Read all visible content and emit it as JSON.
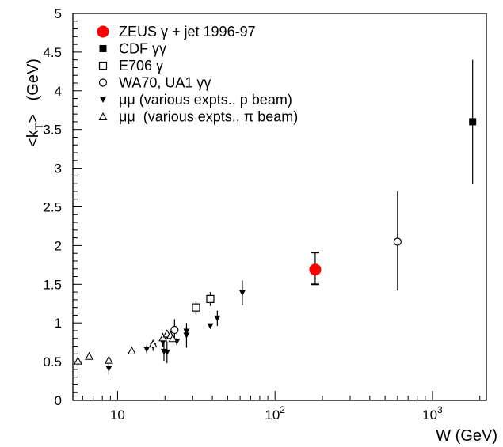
{
  "chart_data": {
    "type": "scatter",
    "title": "",
    "xlabel": "W   (GeV)",
    "ylabel": "<kT>   (GeV)",
    "x_scale": "log",
    "xlim": [
      5.2,
      2200
    ],
    "ylim": [
      0,
      5
    ],
    "x_major_ticks": [
      {
        "value": 10,
        "label": "10"
      },
      {
        "value": 100,
        "label": "10",
        "sup": "2"
      },
      {
        "value": 1000,
        "label": "10",
        "sup": "3"
      }
    ],
    "y_ticks": [
      {
        "value": 0,
        "label": "0"
      },
      {
        "value": 0.5,
        "label": "0.5"
      },
      {
        "value": 1,
        "label": "1"
      },
      {
        "value": 1.5,
        "label": "1.5"
      },
      {
        "value": 2,
        "label": "2"
      },
      {
        "value": 2.5,
        "label": "2.5"
      },
      {
        "value": 3,
        "label": "3"
      },
      {
        "value": 3.5,
        "label": "3.5"
      },
      {
        "value": 4,
        "label": "4"
      },
      {
        "value": 4.5,
        "label": "4.5"
      },
      {
        "value": 5,
        "label": "5"
      }
    ],
    "grid": false,
    "legend_position": "top-left",
    "series": [
      {
        "name": "ZEUS γ + jet 1996-97",
        "marker": "filled-circle-large",
        "color": "#ff0000",
        "points": [
          {
            "x": 180,
            "y": 1.69,
            "yerr_lo": 0.19,
            "yerr_hi": 0.22
          }
        ]
      },
      {
        "name": "CDF γγ",
        "marker": "filled-square",
        "color": "#000000",
        "points": [
          {
            "x": 1800,
            "y": 3.6,
            "yerr_lo": 0.8,
            "yerr_hi": 0.8
          }
        ]
      },
      {
        "name": "E706 γ",
        "marker": "open-square",
        "color": "#000000",
        "points": [
          {
            "x": 31.5,
            "y": 1.2,
            "yerr_lo": 0.09,
            "yerr_hi": 0.09
          },
          {
            "x": 38.8,
            "y": 1.31,
            "yerr_lo": 0.09,
            "yerr_hi": 0.09
          }
        ]
      },
      {
        "name": "WA70, UA1 γγ",
        "marker": "open-circle",
        "color": "#000000",
        "points": [
          {
            "x": 23,
            "y": 0.91,
            "yerr_lo": 0.14,
            "yerr_hi": 0.14
          },
          {
            "x": 600,
            "y": 2.05,
            "yerr_lo": 0.63,
            "yerr_hi": 0.65
          }
        ]
      },
      {
        "name": "μμ (various expts., p beam)",
        "marker": "filled-triangle-down",
        "color": "#000000",
        "points": [
          {
            "x": 8.8,
            "y": 0.41,
            "yerr_lo": 0.08,
            "yerr_hi": 0.08
          },
          {
            "x": 15.3,
            "y": 0.66,
            "yerr_lo": 0.05,
            "yerr_hi": 0.05
          },
          {
            "x": 16.8,
            "y": 0.7,
            "yerr_lo": 0.06,
            "yerr_hi": 0.06
          },
          {
            "x": 19.4,
            "y": 0.75,
            "yerr_lo": 0.06,
            "yerr_hi": 0.06
          },
          {
            "x": 19.7,
            "y": 0.63,
            "yerr_lo": 0.12,
            "yerr_hi": 0.12
          },
          {
            "x": 20.6,
            "y": 0.62,
            "yerr_lo": 0.14,
            "yerr_hi": 0.14
          },
          {
            "x": 23.8,
            "y": 0.76,
            "yerr_lo": 0.05,
            "yerr_hi": 0.05
          },
          {
            "x": 27.4,
            "y": 0.84,
            "yerr_lo": 0.16,
            "yerr_hi": 0.16
          },
          {
            "x": 27.4,
            "y": 0.89,
            "yerr_lo": 0.06,
            "yerr_hi": 0.06
          },
          {
            "x": 38.8,
            "y": 0.96,
            "yerr_lo": 0.03,
            "yerr_hi": 0.03
          },
          {
            "x": 43,
            "y": 1.06,
            "yerr_lo": 0.1,
            "yerr_hi": 0.1
          },
          {
            "x": 62,
            "y": 1.39,
            "yerr_lo": 0.16,
            "yerr_hi": 0.16
          }
        ]
      },
      {
        "name": "μμ  (various expts., π beam)",
        "marker": "open-triangle-up",
        "color": "#000000",
        "points": [
          {
            "x": 5.6,
            "y": 0.51,
            "yerr_lo": 0.06,
            "yerr_hi": 0.06
          },
          {
            "x": 6.6,
            "y": 0.57,
            "yerr_lo": 0.04,
            "yerr_hi": 0.04
          },
          {
            "x": 8.8,
            "y": 0.52,
            "yerr_lo": 0.03,
            "yerr_hi": 0.03
          },
          {
            "x": 12.3,
            "y": 0.64,
            "yerr_lo": 0.03,
            "yerr_hi": 0.03
          },
          {
            "x": 16.8,
            "y": 0.73,
            "yerr_lo": 0.04,
            "yerr_hi": 0.04
          },
          {
            "x": 19.4,
            "y": 0.81,
            "yerr_lo": 0.06,
            "yerr_hi": 0.06
          },
          {
            "x": 20.6,
            "y": 0.86,
            "yerr_lo": 0.05,
            "yerr_hi": 0.05
          },
          {
            "x": 21.7,
            "y": 0.84,
            "yerr_lo": 0.04,
            "yerr_hi": 0.04
          },
          {
            "x": 22.4,
            "y": 0.8,
            "yerr_lo": 0.04,
            "yerr_hi": 0.04
          }
        ]
      }
    ]
  }
}
